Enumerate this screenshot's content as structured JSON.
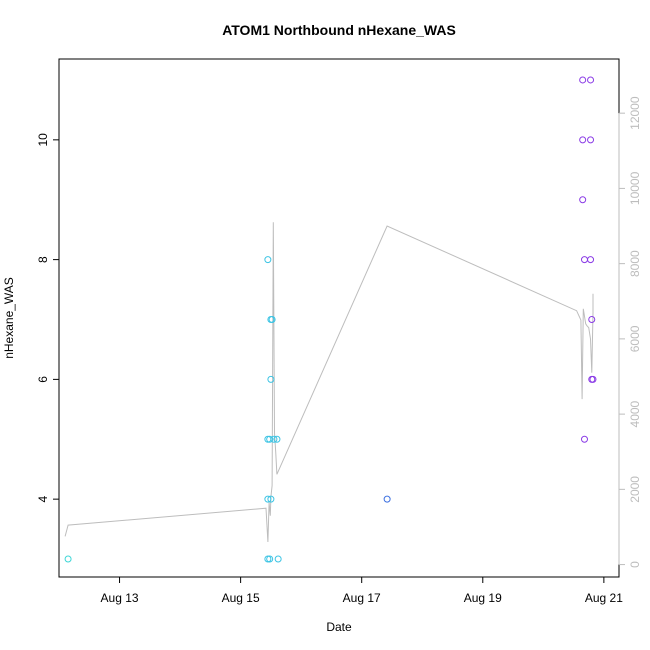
{
  "chart_data": {
    "type": "scatter",
    "title": "ATOM1 Northbound nHexane_WAS",
    "xlabel": "Date",
    "ylabel": "nHexane_WAS",
    "x_tick_labels": [
      "Aug 13",
      "Aug 15",
      "Aug 17",
      "Aug 19",
      "Aug 21"
    ],
    "x_tick_values": [
      13,
      15,
      17,
      19,
      21
    ],
    "xlim": [
      12.0,
      21.25
    ],
    "ylim": [
      2.7,
      11.35
    ],
    "y_ticks": [
      4,
      6,
      8,
      10
    ],
    "y2_ticks": [
      0,
      2000,
      4000,
      6000,
      8000,
      10000,
      12000
    ],
    "y2lim": [
      -330,
      13440
    ],
    "grid": false,
    "legend": "none",
    "points": [
      {
        "x": 12.15,
        "y": 3,
        "color": "#3dd6d6"
      },
      {
        "x": 15.45,
        "y": 8,
        "color": "#3cc4e4"
      },
      {
        "x": 15.5,
        "y": 7,
        "color": "#3cc4e4"
      },
      {
        "x": 15.52,
        "y": 7,
        "color": "#3cc4e4"
      },
      {
        "x": 15.5,
        "y": 6,
        "color": "#3cc4e4"
      },
      {
        "x": 15.45,
        "y": 5,
        "color": "#3cc4e4"
      },
      {
        "x": 15.48,
        "y": 5,
        "color": "#3cc4e4"
      },
      {
        "x": 15.55,
        "y": 5,
        "color": "#3cc4e4"
      },
      {
        "x": 15.6,
        "y": 5,
        "color": "#3cc4e4"
      },
      {
        "x": 15.45,
        "y": 4,
        "color": "#3cc4e4"
      },
      {
        "x": 15.5,
        "y": 4,
        "color": "#3cc4e4"
      },
      {
        "x": 15.45,
        "y": 3,
        "color": "#3cc4e4"
      },
      {
        "x": 15.48,
        "y": 3,
        "color": "#3cc4e4"
      },
      {
        "x": 15.62,
        "y": 3,
        "color": "#3cc4e4"
      },
      {
        "x": 17.42,
        "y": 4,
        "color": "#3b6fe0"
      },
      {
        "x": 20.65,
        "y": 11,
        "color": "#8a3be6"
      },
      {
        "x": 20.78,
        "y": 11,
        "color": "#8a3be6"
      },
      {
        "x": 20.65,
        "y": 10,
        "color": "#8a3be6"
      },
      {
        "x": 20.78,
        "y": 10,
        "color": "#8a3be6"
      },
      {
        "x": 20.65,
        "y": 9,
        "color": "#8a3be6"
      },
      {
        "x": 20.68,
        "y": 8,
        "color": "#8a3be6"
      },
      {
        "x": 20.78,
        "y": 8,
        "color": "#8a3be6"
      },
      {
        "x": 20.8,
        "y": 7,
        "color": "#8a3be6"
      },
      {
        "x": 20.8,
        "y": 6,
        "color": "#8a3be6"
      },
      {
        "x": 20.82,
        "y": 6,
        "color": "#8a3be6"
      },
      {
        "x": 20.68,
        "y": 5,
        "color": "#8a3be6"
      }
    ],
    "line_series": {
      "axis": "right",
      "color": "#bdbdbd",
      "x": [
        12.1,
        12.15,
        15.42,
        15.45,
        15.47,
        15.49,
        15.5,
        15.52,
        15.54,
        15.56,
        15.58,
        15.6,
        17.42,
        20.55,
        20.62,
        20.64,
        20.66,
        20.68,
        20.7,
        20.72,
        20.75,
        20.78,
        20.8,
        20.82,
        20.82
      ],
      "y": [
        750,
        1050,
        1500,
        600,
        1650,
        1300,
        1800,
        2100,
        9100,
        3500,
        3000,
        2400,
        9000,
        6750,
        6500,
        4400,
        6800,
        6600,
        6400,
        6350,
        6300,
        6000,
        5100,
        6700,
        7200
      ]
    }
  }
}
